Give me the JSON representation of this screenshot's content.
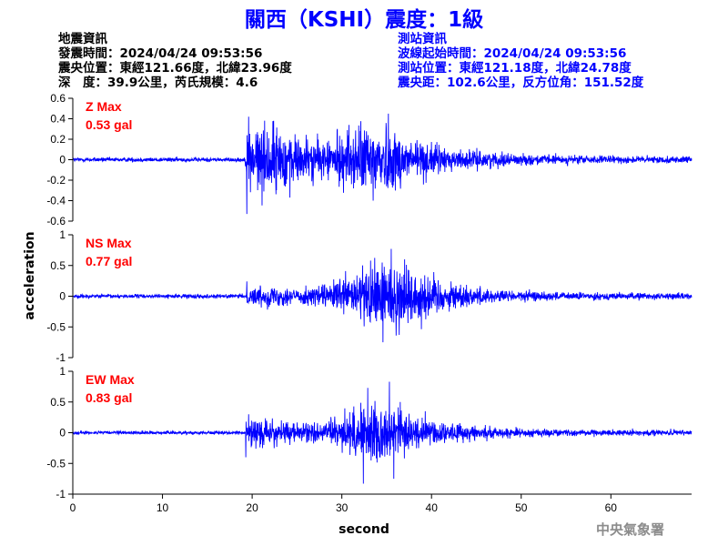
{
  "header": {
    "title": "關西（KSHI）震度：1級"
  },
  "quake_info": {
    "heading": "地震資訊",
    "time": "發震時間：2024/04/24 09:53:56",
    "epicenter": "震央位置：東經121.66度，北緯23.96度",
    "depth_magnitude": "深　度：39.9公里，芮氏規模：4.6"
  },
  "station_info": {
    "heading": "測站資訊",
    "wave_start": "波線起始時間：2024/04/24 09:53:56",
    "location": "測站位置：東經121.18度，北緯24.78度",
    "distance": "震央距：102.6公里，反方位角：151.52度"
  },
  "footer": {
    "agency": "中央氣象署"
  },
  "chart_data": [
    {
      "type": "line",
      "component": "Z",
      "max_label": "Z Max",
      "max_value_label": "0.53 gal",
      "max_value": 0.53,
      "xlim": [
        0,
        69
      ],
      "ylim": [
        -0.6,
        0.6
      ],
      "yticks": [
        "0.6",
        "0.4",
        "0.2",
        "0",
        "-0.2",
        "-0.4",
        "-0.6"
      ],
      "onset_s": 19.3,
      "noise_amp": 0.02,
      "envelope": [
        [
          0,
          0.02
        ],
        [
          19.2,
          0.02
        ],
        [
          19.6,
          0.3
        ],
        [
          21,
          0.34
        ],
        [
          24,
          0.26
        ],
        [
          28,
          0.17
        ],
        [
          31,
          0.28
        ],
        [
          34,
          0.34
        ],
        [
          37,
          0.24
        ],
        [
          42,
          0.1
        ],
        [
          50,
          0.05
        ],
        [
          60,
          0.035
        ],
        [
          69,
          0.03
        ]
      ],
      "peaks": [
        [
          19.4,
          -0.53
        ],
        [
          19.6,
          0.42
        ],
        [
          35.2,
          0.45
        ],
        [
          33.5,
          -0.4
        ],
        [
          22.4,
          0.38
        ],
        [
          24.2,
          -0.37
        ],
        [
          29.5,
          0.3
        ],
        [
          30.8,
          0.34
        ]
      ],
      "color": "#0000ff"
    },
    {
      "type": "line",
      "component": "NS",
      "max_label": "NS Max",
      "max_value_label": "0.77 gal",
      "max_value": 0.77,
      "xlim": [
        0,
        69
      ],
      "ylim": [
        -1,
        1
      ],
      "yticks": [
        "1",
        "0.5",
        "0",
        "-0.5",
        "-1"
      ],
      "onset_s": 19.3,
      "noise_amp": 0.03,
      "envelope": [
        [
          0,
          0.03
        ],
        [
          19.2,
          0.03
        ],
        [
          19.6,
          0.13
        ],
        [
          22,
          0.17
        ],
        [
          25,
          0.12
        ],
        [
          29,
          0.2
        ],
        [
          32,
          0.42
        ],
        [
          35,
          0.6
        ],
        [
          38,
          0.45
        ],
        [
          42,
          0.22
        ],
        [
          47,
          0.1
        ],
        [
          55,
          0.06
        ],
        [
          69,
          0.045
        ]
      ],
      "peaks": [
        [
          35.5,
          0.77
        ],
        [
          34.6,
          -0.75
        ],
        [
          33.2,
          0.58
        ],
        [
          36.4,
          -0.63
        ],
        [
          37,
          0.6
        ],
        [
          19.4,
          0.24
        ],
        [
          32.5,
          -0.49
        ]
      ],
      "color": "#0000ff"
    },
    {
      "type": "line",
      "component": "EW",
      "max_label": "EW Max",
      "max_value_label": "0.83 gal",
      "max_value": 0.83,
      "xlim": [
        0,
        69
      ],
      "ylim": [
        -1,
        1
      ],
      "yticks": [
        "1",
        "0.5",
        "0",
        "-0.5",
        "-1"
      ],
      "onset_s": 19.3,
      "noise_amp": 0.025,
      "envelope": [
        [
          0,
          0.025
        ],
        [
          19.2,
          0.025
        ],
        [
          19.6,
          0.22
        ],
        [
          22,
          0.2
        ],
        [
          26,
          0.14
        ],
        [
          30,
          0.25
        ],
        [
          33,
          0.5
        ],
        [
          35,
          0.45
        ],
        [
          38,
          0.28
        ],
        [
          42,
          0.15
        ],
        [
          48,
          0.08
        ],
        [
          55,
          0.05
        ],
        [
          69,
          0.04
        ]
      ],
      "peaks": [
        [
          35.3,
          0.83
        ],
        [
          32.4,
          -0.83
        ],
        [
          32.9,
          0.73
        ],
        [
          19.3,
          -0.4
        ],
        [
          19.6,
          0.3
        ],
        [
          35.8,
          -0.75
        ],
        [
          36.5,
          0.5
        ]
      ],
      "color": "#0000ff"
    },
    {
      "type": "axis",
      "xlabel": "second",
      "ylabel": "acceleration",
      "xticks": [
        0,
        10,
        20,
        30,
        40,
        50,
        60
      ]
    }
  ]
}
